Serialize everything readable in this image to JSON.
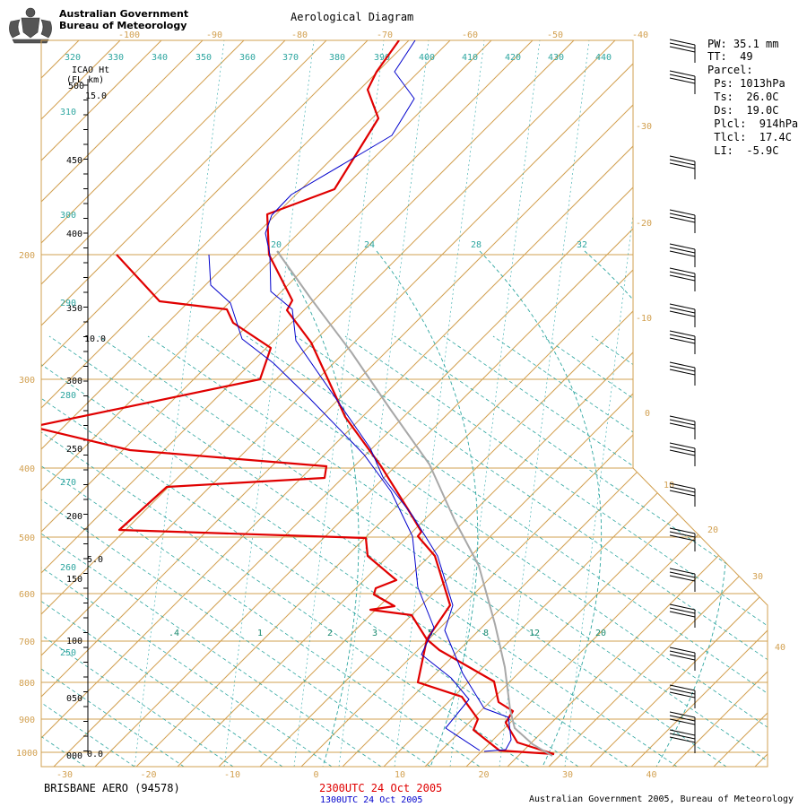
{
  "header": {
    "org_line1": "Australian Government",
    "org_line2": "Bureau of Meteorology",
    "title": "Aerological Diagram"
  },
  "footer": {
    "station": "BRISBANE AERO (94578)",
    "primary_time": "2300UTC 24 Oct 2005",
    "secondary_time": "1300UTC 24 Oct 2005",
    "copyright": "Australian Government 2005, Bureau of Meteorology"
  },
  "indices": {
    "pw": "PW: 35.1 mm",
    "tt": "TT:  49",
    "parcel": "Parcel:",
    "ps": " Ps: 1013hPa",
    "ts": " Ts:  26.0C",
    "ds": " Ds:  19.0C",
    "plcl": " Plcl:  914hPa",
    "tlcl": " Tlcl:  17.4C",
    "li": " LI:  -5.9C"
  },
  "colors": {
    "isotherm": "#d2a050",
    "dry_adiabat": "#2ea6a0",
    "temp_2300": "#e00000",
    "temp_1300": "#0000cc",
    "parcel": "#a8a8a8",
    "text": "#000000"
  },
  "chart_data": {
    "type": "skew-t",
    "temperature_axis_labels": [
      "-100",
      "-90",
      "-80",
      "-70",
      "-60",
      "-50",
      "-40",
      "-30",
      "-20",
      "-10",
      "0",
      "10",
      "20",
      "30",
      "40"
    ],
    "pressure_labels": [
      "200",
      "300",
      "400",
      "500",
      "600",
      "700",
      "800",
      "900",
      "1000"
    ],
    "height_scale_title": "ICAO Ht",
    "height_scale_subtitle": "(FL  km)",
    "height_labels": [
      "500",
      "15.0",
      "450",
      "400",
      "350",
      "10.0",
      "300",
      "250",
      "200",
      "5.0",
      "150",
      "100",
      "050",
      "000",
      "0.0"
    ],
    "theta_labels": [
      "320",
      "330",
      "340",
      "350",
      "360",
      "370",
      "380",
      "390",
      "400",
      "410",
      "420",
      "430",
      "440",
      "310",
      "300",
      "290",
      "280",
      "270",
      "260",
      "250"
    ],
    "moist_labels": [
      "20",
      "24",
      "28",
      "32"
    ],
    "mixing_ratio_labels": [
      ".4",
      "1",
      "2",
      "3",
      "5",
      "8",
      "12",
      "20"
    ],
    "series": [
      {
        "name": "2300UTC 24 Oct 2005",
        "points": [
          [
            130,
            284
          ],
          [
            178,
            336
          ],
          [
            253,
            345
          ],
          [
            260,
            360
          ],
          [
            302,
            388
          ],
          [
            290,
            423
          ],
          [
            36,
            476
          ],
          [
            145,
            502
          ],
          [
            364,
            520
          ],
          [
            362,
            533
          ],
          [
            186,
            543
          ],
          [
            133,
            591
          ],
          [
            347,
            598
          ],
          [
            408,
            600
          ],
          [
            410,
            620
          ],
          [
            442,
            647
          ],
          [
            419,
            656
          ],
          [
            417,
            663
          ],
          [
            440,
            676
          ],
          [
            413,
            680
          ],
          [
            459,
            686
          ],
          [
            476,
            713
          ],
          [
            466,
            761
          ],
          [
            515,
            777
          ],
          [
            533,
            802
          ],
          [
            528,
            814
          ],
          [
            557,
            837
          ],
          [
            618,
            841
          ]
        ]
      },
      {
        "name": "temp-2300-upper",
        "points": [
          [
            445,
            45
          ],
          [
            420,
            80
          ],
          [
            410,
            100
          ],
          [
            422,
            132
          ],
          [
            373,
            211
          ],
          [
            298,
            239
          ],
          [
            300,
            284
          ],
          [
            326,
            335
          ],
          [
            320,
            346
          ],
          [
            347,
            382
          ],
          [
            385,
            465
          ],
          [
            425,
            520
          ],
          [
            455,
            568
          ],
          [
            470,
            593
          ],
          [
            466,
            598
          ],
          [
            485,
            620
          ],
          [
            502,
            675
          ],
          [
            476,
            713
          ],
          [
            490,
            725
          ],
          [
            551,
            760
          ],
          [
            556,
            783
          ],
          [
            572,
            793
          ],
          [
            564,
            806
          ],
          [
            577,
            828
          ],
          [
            618,
            841
          ]
        ]
      },
      {
        "name": "temp-1300-a",
        "points": [
          [
            463,
            45
          ],
          [
            440,
            80
          ],
          [
            462,
            110
          ],
          [
            437,
            151
          ],
          [
            405,
            170
          ],
          [
            325,
            217
          ],
          [
            303,
            240
          ],
          [
            296,
            260
          ],
          [
            301,
            284
          ],
          [
            302,
            325
          ],
          [
            326,
            345
          ],
          [
            330,
            380
          ],
          [
            413,
            500
          ],
          [
            427,
            532
          ],
          [
            460,
            575
          ],
          [
            488,
            620
          ],
          [
            505,
            675
          ],
          [
            496,
            703
          ],
          [
            516,
            751
          ],
          [
            540,
            790
          ],
          [
            567,
            800
          ],
          [
            570,
            825
          ],
          [
            564,
            836
          ],
          [
            540,
            838
          ]
        ]
      },
      {
        "name": "temp-1300-b",
        "points": [
          [
            233,
            284
          ],
          [
            235,
            318
          ],
          [
            257,
            338
          ],
          [
            270,
            378
          ],
          [
            305,
            405
          ],
          [
            346,
            445
          ],
          [
            406,
            507
          ],
          [
            436,
            548
          ],
          [
            460,
            598
          ],
          [
            466,
            655
          ],
          [
            484,
            700
          ],
          [
            478,
            713
          ],
          [
            470,
            730
          ],
          [
            503,
            756
          ],
          [
            523,
            780
          ],
          [
            497,
            812
          ],
          [
            535,
            837
          ]
        ]
      },
      {
        "name": "parcel",
        "points": [
          [
            309,
            280
          ],
          [
            346,
            332
          ],
          [
            392,
            393
          ],
          [
            435,
            456
          ],
          [
            479,
            518
          ],
          [
            507,
            580
          ],
          [
            534,
            631
          ],
          [
            552,
            696
          ],
          [
            563,
            744
          ],
          [
            569,
            792
          ],
          [
            574,
            812
          ],
          [
            594,
            830
          ],
          [
            616,
            843
          ]
        ]
      }
    ]
  }
}
